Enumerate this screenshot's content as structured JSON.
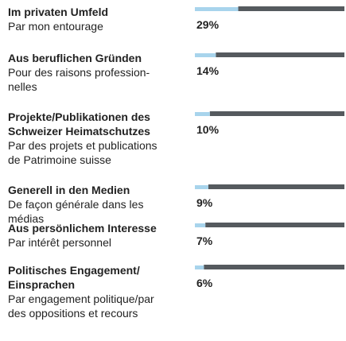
{
  "chart_data": {
    "type": "bar",
    "orientation": "horizontal",
    "labels_de": [
      [
        "Im privaten Umfeld"
      ],
      [
        "Aus beruflichen Gründen"
      ],
      [
        "Projekte/Publikationen des",
        "Schweizer Heimatschutzes"
      ],
      [
        "Generell in den Medien"
      ],
      [
        "Aus persönlichem Interesse"
      ],
      [
        "Politisches Engagement/",
        "Einsprachen"
      ]
    ],
    "labels_fr": [
      [
        "Par mon entourage"
      ],
      [
        "Pour des raisons profession-",
        "nelles"
      ],
      [
        "Par des projets et publications",
        "de Patrimoine suisse"
      ],
      [
        "De façon générale dans les",
        "médias"
      ],
      [
        "Par intérêt personnel"
      ],
      [
        "Par engagement politique/par",
        "des oppositions et recours"
      ]
    ],
    "values": [
      29,
      14,
      10,
      9,
      7,
      6
    ],
    "value_labels": [
      "29%",
      "14%",
      "10%",
      "9%",
      "7%",
      "6%"
    ],
    "xlim": [
      0,
      100
    ],
    "color": "#a8d4ec",
    "rest_color": "#555a5e"
  }
}
